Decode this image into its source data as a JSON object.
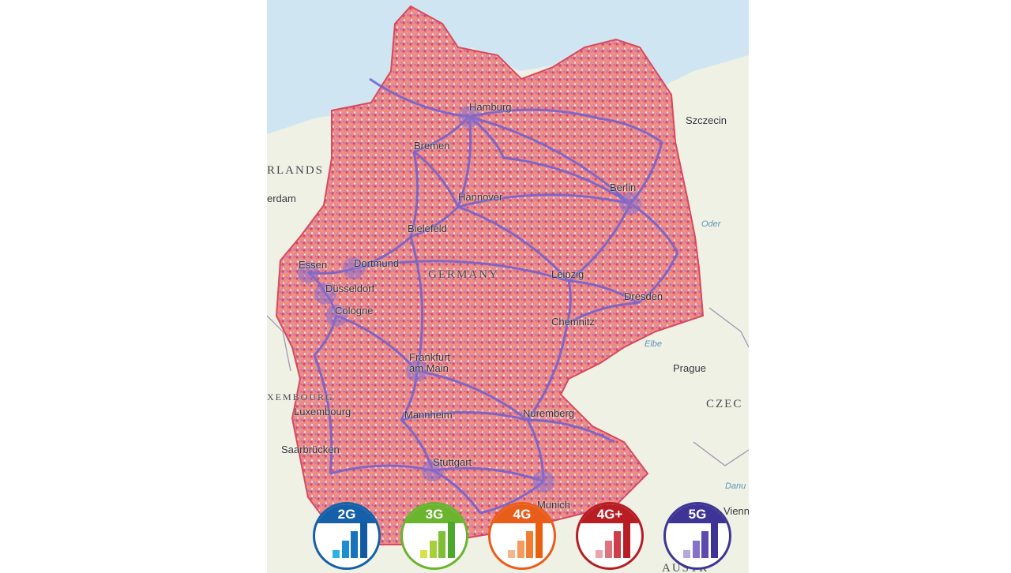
{
  "map": {
    "labels": {
      "hamburg": "Hamburg",
      "szczecin": "Szczecin",
      "bremen": "Bremen",
      "netherlands": "RLANDS",
      "amsterdam": "erdam",
      "berlin": "Berlin",
      "hannover": "Hannover",
      "oder": "Oder",
      "bielefeld": "Bielefeld",
      "essen": "Essen",
      "dortmund": "Dortmund",
      "germany": "GERMANY",
      "leipzig": "Leipzig",
      "dusseldorf": "Düsseldorf",
      "dresden": "Dresden",
      "cologne": "Cologne",
      "chemnitz": "Chemnitz",
      "elbe": "Elbe",
      "prague": "Prague",
      "frankfurt": "Frankfurt am Main",
      "czech": "CZEC",
      "luxembourg_country": "XEMBOURG",
      "luxembourg": "Luxembourg",
      "mannheim": "Mannheim",
      "nuremberg": "Nuremberg",
      "saarbrucken": "Saarbrücken",
      "stuttgart": "Stuttgart",
      "munich": "Munich",
      "vienna": "Vienn",
      "danube": "Danu",
      "austria": "AUSTR"
    },
    "colors": {
      "sea": "#cfe5f2",
      "land": "#eef1e4",
      "coverage_red": "#e0707e",
      "coverage_orange": "#f29a58",
      "coverage_purple": "#6f5fcf"
    }
  },
  "legend": [
    {
      "label": "2G",
      "color": "#1560a8",
      "bar_colors": [
        "#2bb3e6",
        "#1d8fd1",
        "#1771bb",
        "#125aa3"
      ]
    },
    {
      "label": "3G",
      "color": "#6ab42e",
      "bar_colors": [
        "#d7e24a",
        "#a6cf3a",
        "#7fbf34",
        "#4ea82e"
      ]
    },
    {
      "label": "4G",
      "color": "#e85d1a",
      "bar_colors": [
        "#f5b48a",
        "#f39a5e",
        "#ef7d33",
        "#e8600f"
      ]
    },
    {
      "label": "4G+",
      "color": "#b81d24",
      "bar_colors": [
        "#eba3ac",
        "#e0727e",
        "#cf3d48",
        "#b81d24"
      ]
    },
    {
      "label": "5G",
      "color": "#3e3495",
      "bar_colors": [
        "#b7a8dc",
        "#8672c6",
        "#5b4bb0",
        "#3e3495"
      ]
    }
  ]
}
